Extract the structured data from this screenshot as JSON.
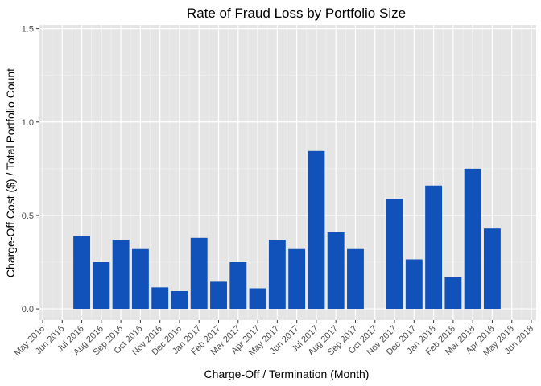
{
  "chart_data": {
    "type": "bar",
    "title": "Rate of Fraud Loss by Portfolio Size",
    "xlabel": "Charge-Off / Termination (Month)",
    "ylabel": "Charge-Off Cost ($) / Total Portfolio Count",
    "ylim": [
      -0.06,
      1.52
    ],
    "yticks": [
      "0.0",
      "0.5",
      "1.0",
      "1.5"
    ],
    "grid": true,
    "legend": "none",
    "bar_color": "#1052b9",
    "background_color": "#e5e5e5",
    "categories": [
      "May 2016",
      "Jun 2016",
      "Jul 2016",
      "Aug 2016",
      "Sep 2016",
      "Oct 2016",
      "Nov 2016",
      "Dec 2016",
      "Jan 2017",
      "Feb 2017",
      "Mar 2017",
      "Apr 2017",
      "May 2017",
      "Jun 2017",
      "Jul 2017",
      "Aug 2017",
      "Sep 2017",
      "Oct 2017",
      "Nov 2017",
      "Dec 2017",
      "Jan 2018",
      "Feb 2018",
      "Mar 2018",
      "Apr 2018",
      "May 2018",
      "Jun 2018"
    ],
    "values": [
      null,
      null,
      0.39,
      0.25,
      0.37,
      0.32,
      0.115,
      0.095,
      0.38,
      0.145,
      0.25,
      0.11,
      0.37,
      0.32,
      0.845,
      0.41,
      0.32,
      null,
      0.59,
      0.265,
      0.66,
      0.17,
      0.75,
      0.43,
      null,
      null
    ]
  }
}
